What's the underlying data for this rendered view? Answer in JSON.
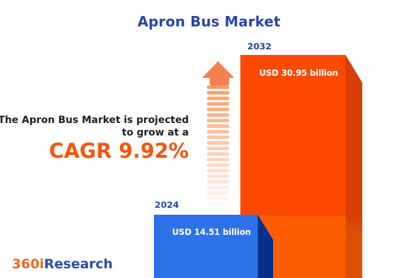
{
  "title": "Apron Bus Market",
  "title_color": "#2745A8",
  "insight": {
    "line1": "The Apron Bus Market is projected",
    "line2": "to grow at a",
    "cagr_label": "CAGR 9.92%",
    "cagr_color": "#F3570C",
    "text_color": "#1D1D1D"
  },
  "bars": {
    "start": {
      "year": "2024",
      "value_label": "USD 14.51 billion",
      "face_color": "#2D72E8",
      "side_color": "#04318C",
      "year_label_color": "#2745A8"
    },
    "end": {
      "year": "2032",
      "value_label": "USD 30.95 billion",
      "face_color_top": "#FE4A02",
      "face_color_bottom": "#FE5D01",
      "side_color_top": "#D73E04",
      "side_color_bottom": "#DC5104",
      "year_label_color": "#2745A8"
    }
  },
  "arrow": {
    "head_color": "#F68052",
    "stripe_color": "#FF9C61",
    "stripe_count": 22
  },
  "logo": {
    "prefix": "360i",
    "suffix": "Research",
    "prefix_color": "#F2661F",
    "suffix_color": "#2B4CA8"
  },
  "chart_data": {
    "type": "bar",
    "title": "Apron Bus Market",
    "categories": [
      "2024",
      "2032"
    ],
    "values": [
      14.51,
      30.95
    ],
    "unit": "USD billion",
    "value_labels": [
      "USD 14.51 billion",
      "USD 30.95 billion"
    ],
    "cagr_percent": 9.92,
    "annotation": "The Apron Bus Market is projected to grow at a CAGR 9.92%",
    "bar_colors": [
      "#2D72E8",
      "#FE4A02"
    ],
    "orientation": "vertical",
    "grid": false,
    "axes_visible": false,
    "legend": false
  }
}
